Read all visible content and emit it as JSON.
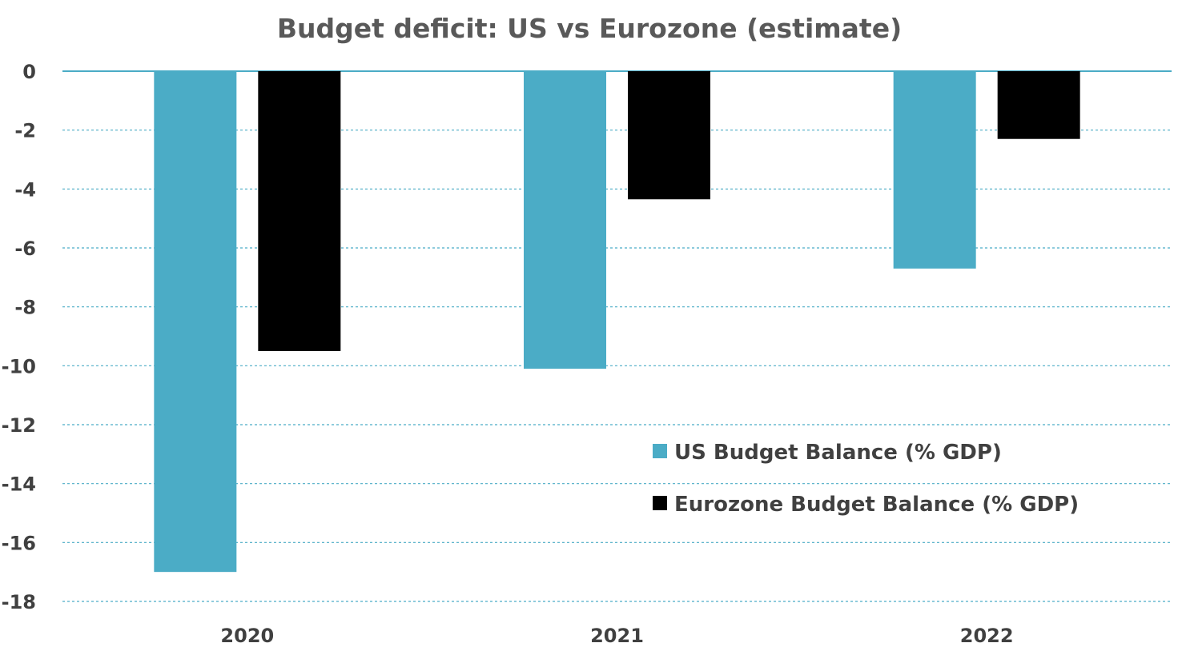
{
  "chart_data": {
    "type": "bar",
    "title": "Budget deficit: US vs Eurozone (estimate)",
    "categories": [
      "2020",
      "2021",
      "2022"
    ],
    "series": [
      {
        "name": "US Budget Balance (% GDP)",
        "values": [
          -17.0,
          -10.1,
          -6.7
        ],
        "color": "#4BACC6"
      },
      {
        "name": "Eurozone Budget Balance (% GDP)",
        "values": [
          -9.5,
          -4.35,
          -2.3
        ],
        "color": "#000000"
      }
    ],
    "ylim": [
      -18,
      0
    ],
    "yticks": [
      0,
      -2,
      -4,
      -6,
      -8,
      -10,
      -12,
      -14,
      -16,
      -18
    ],
    "grid": true,
    "legend_position": "inside-right",
    "colors": {
      "title": "#595959",
      "axis_text": "#404040",
      "gridline": "#4BACC6",
      "zero_line": "#4BACC6"
    }
  }
}
